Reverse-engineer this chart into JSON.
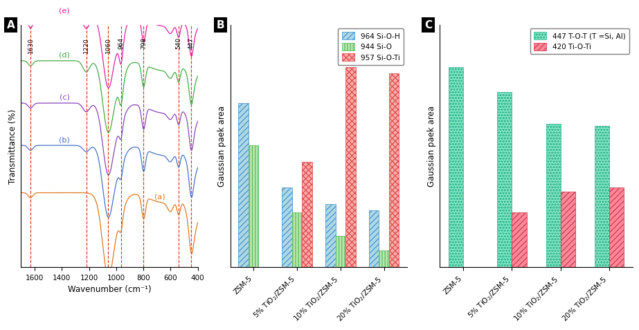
{
  "panel_A": {
    "xlabel": "Wavenumber (cm⁻¹)",
    "ylabel": "Transmittance (%)",
    "vlines": [
      1630,
      1220,
      1060,
      964,
      798,
      540,
      447
    ],
    "vline_color": "#cc2200",
    "curves": [
      {
        "label": "(a)",
        "color": "#e07820"
      },
      {
        "label": "(b)",
        "color": "#4472c4"
      },
      {
        "label": "(c)",
        "color": "#8844bb"
      },
      {
        "label": "(d)",
        "color": "#44aa44"
      },
      {
        "label": "(e)",
        "color": "#e020a0"
      }
    ]
  },
  "panel_B": {
    "ylabel": "Gaussian paek area",
    "categories": [
      "ZSM-5",
      "5% TiO$_2$/ZSM-5",
      "10% TiO$_2$/ZSM-5",
      "20% TiO$_2$/ZSM-5"
    ],
    "series": [
      {
        "label": "964 Si-O-H",
        "color": "#add8e6",
        "hatch": "////",
        "edgecolor": "#5599cc",
        "values": [
          0.78,
          0.38,
          0.3,
          0.27
        ]
      },
      {
        "label": "944 Si-O",
        "color": "#b8e8b0",
        "hatch": "||||",
        "edgecolor": "#66bb66",
        "values": [
          0.58,
          0.26,
          0.15,
          0.08
        ]
      },
      {
        "label": "957 Si-O-Ti",
        "color": "#ffaaaa",
        "hatch": "xxxx",
        "edgecolor": "#dd5555",
        "values": [
          0.0,
          0.5,
          0.95,
          0.92
        ]
      }
    ]
  },
  "panel_C": {
    "ylabel": "Gaussian paek area",
    "categories": [
      "ZSM-5",
      "5% TiO$_2$/ZSM-5",
      "10% TiO$_2$/ZSM-5",
      "20% TiO$_2$/ZSM-5"
    ],
    "series": [
      {
        "label": "447 T-O-T (T =Si, Al)",
        "color": "#88eec8",
        "hatch": "oooo",
        "edgecolor": "#44bb99",
        "values": [
          0.95,
          0.83,
          0.68,
          0.67
        ]
      },
      {
        "label": "420 Ti-O-Ti",
        "color": "#ff8899",
        "hatch": "////",
        "edgecolor": "#cc4455",
        "values": [
          0.0,
          0.26,
          0.36,
          0.38
        ]
      }
    ]
  }
}
